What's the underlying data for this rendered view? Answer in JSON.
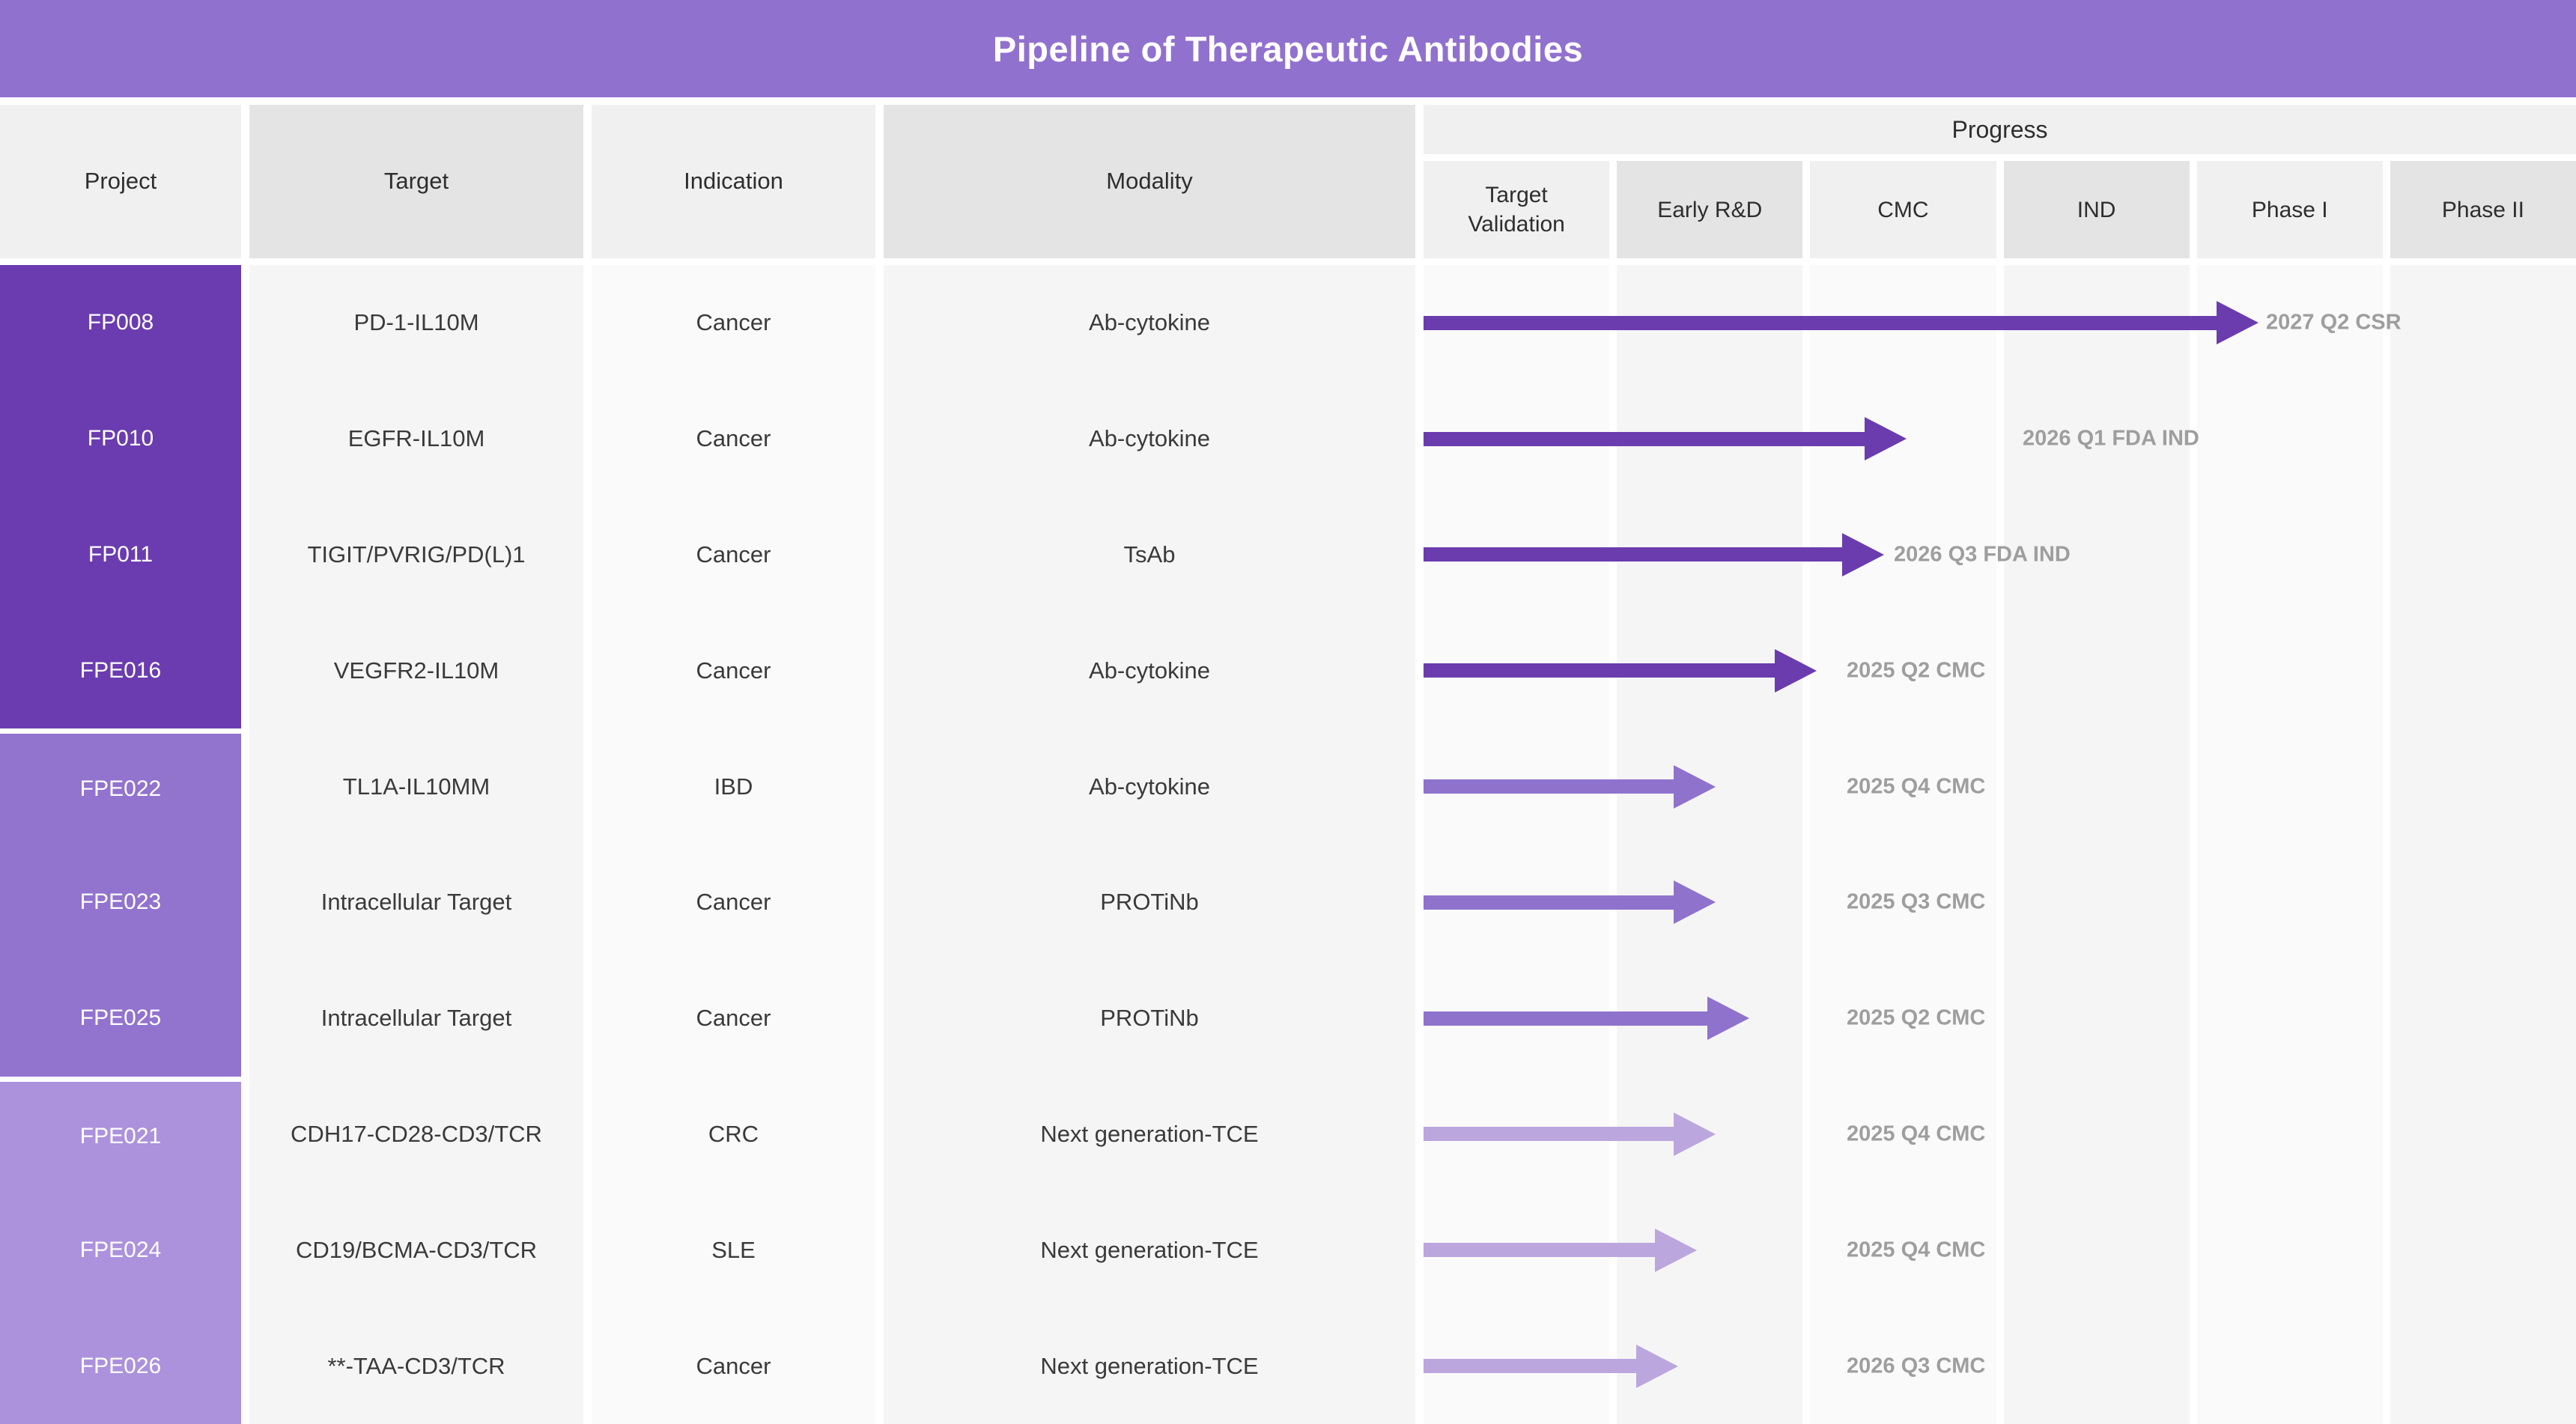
{
  "title": "Pipeline of Therapeutic Antibodies",
  "colors": {
    "header_bar": "#9171CE",
    "annotation": "#9E9E9E",
    "groups": {
      "1": "#6B3CAF",
      "2": "#9273CE",
      "3": "#AC92DC"
    },
    "arrows": {
      "1": "#6B3CAE",
      "2": "#8F72CC",
      "3": "#BCA6DE"
    },
    "header_cell_light": "#F0F0F0",
    "header_cell_dark": "#E4E4E4",
    "body_band_light": "#FAFAFA",
    "body_band_dark": "#F5F5F6"
  },
  "table": {
    "columns": {
      "project": "Project",
      "target": "Target",
      "indication": "Indication",
      "modality": "Modality",
      "progress": "Progress"
    },
    "progress_stages": [
      "Target Validation",
      "Early R&D",
      "CMC",
      "IND",
      "Phase I",
      "Phase II"
    ],
    "rows": [
      {
        "project": "FP008",
        "target": "PD-1-IL10M",
        "indication": "Cancer",
        "modality": "Ab-cytokine",
        "group": "1",
        "group_start": false,
        "arrow_len": 1115,
        "milestone": "2027 Q2 CSR",
        "label_x": 1125
      },
      {
        "project": "FP010",
        "target": "EGFR-IL10M",
        "indication": "Cancer",
        "modality": "Ab-cytokine",
        "group": "1",
        "group_start": false,
        "arrow_len": 645,
        "milestone": "2026 Q1 FDA IND",
        "label_x": 800
      },
      {
        "project": "FP011",
        "target": "TIGIT/PVRIG/PD(L)1",
        "indication": "Cancer",
        "modality": "TsAb",
        "group": "1",
        "group_start": false,
        "arrow_len": 615,
        "milestone": "2026 Q3 FDA IND",
        "label_x": 628
      },
      {
        "project": "FPE016",
        "target": "VEGFR2-IL10M",
        "indication": "Cancer",
        "modality": "Ab-cytokine",
        "group": "1",
        "group_start": false,
        "arrow_len": 525,
        "milestone": "2025 Q2 CMC",
        "label_x": 565
      },
      {
        "project": "FPE022",
        "target": "TL1A-IL10MM",
        "indication": "IBD",
        "modality": "Ab-cytokine",
        "group": "2",
        "group_start": true,
        "arrow_len": 390,
        "milestone": "2025 Q4 CMC",
        "label_x": 565
      },
      {
        "project": "FPE023",
        "target": "Intracellular Target",
        "indication": "Cancer",
        "modality": "PROTiNb",
        "group": "2",
        "group_start": false,
        "arrow_len": 390,
        "milestone": "2025 Q3 CMC",
        "label_x": 565
      },
      {
        "project": "FPE025",
        "target": "Intracellular Target",
        "indication": "Cancer",
        "modality": "PROTiNb",
        "group": "2",
        "group_start": false,
        "arrow_len": 435,
        "milestone": "2025 Q2 CMC",
        "label_x": 565
      },
      {
        "project": "FPE021",
        "target": "CDH17-CD28-CD3/TCR",
        "indication": "CRC",
        "modality": "Next generation-TCE",
        "group": "3",
        "group_start": true,
        "arrow_len": 390,
        "milestone": "2025 Q4 CMC",
        "label_x": 565
      },
      {
        "project": "FPE024",
        "target": "CD19/BCMA-CD3/TCR",
        "indication": "SLE",
        "modality": "Next generation-TCE",
        "group": "3",
        "group_start": false,
        "arrow_len": 365,
        "milestone": "2025 Q4 CMC",
        "label_x": 565
      },
      {
        "project": "FPE026",
        "target": "**-TAA-CD3/TCR",
        "indication": "Cancer",
        "modality": "Next generation-TCE",
        "group": "3",
        "group_start": false,
        "arrow_len": 340,
        "milestone": "2026 Q3 CMC",
        "label_x": 565
      }
    ]
  },
  "chart_data": {
    "type": "table",
    "title": "Pipeline of Therapeutic Antibodies",
    "stage_axis": [
      "Target Validation",
      "Early R&D",
      "CMC",
      "IND",
      "Phase I",
      "Phase II"
    ],
    "legend_position": "none",
    "rows": [
      {
        "project": "FP008",
        "target": "PD-1-IL10M",
        "indication": "Cancer",
        "modality": "Ab-cytokine",
        "arrow_end_stage": 4.35,
        "milestone": "2027 Q2 CSR"
      },
      {
        "project": "FP010",
        "target": "EGFR-IL10M",
        "indication": "Cancer",
        "modality": "Ab-cytokine",
        "arrow_end_stage": 2.5,
        "milestone": "2026 Q1 FDA IND"
      },
      {
        "project": "FP011",
        "target": "TIGIT/PVRIG/PD(L)1",
        "indication": "Cancer",
        "modality": "TsAb",
        "arrow_end_stage": 2.4,
        "milestone": "2026 Q3 FDA IND"
      },
      {
        "project": "FPE016",
        "target": "VEGFR2-IL10M",
        "indication": "Cancer",
        "modality": "Ab-cytokine",
        "arrow_end_stage": 2.05,
        "milestone": "2025 Q2 CMC"
      },
      {
        "project": "FPE022",
        "target": "TL1A-IL10MM",
        "indication": "IBD",
        "modality": "Ab-cytokine",
        "arrow_end_stage": 1.5,
        "milestone": "2025 Q4 CMC"
      },
      {
        "project": "FPE023",
        "target": "Intracellular Target",
        "indication": "Cancer",
        "modality": "PROTiNb",
        "arrow_end_stage": 1.5,
        "milestone": "2025 Q3 CMC"
      },
      {
        "project": "FPE025",
        "target": "Intracellular Target",
        "indication": "Cancer",
        "modality": "PROTiNb",
        "arrow_end_stage": 1.7,
        "milestone": "2025 Q2 CMC"
      },
      {
        "project": "FPE021",
        "target": "CDH17-CD28-CD3/TCR",
        "indication": "CRC",
        "modality": "Next generation-TCE",
        "arrow_end_stage": 1.5,
        "milestone": "2025 Q4 CMC"
      },
      {
        "project": "FPE024",
        "target": "CD19/BCMA-CD3/TCR",
        "indication": "SLE",
        "modality": "Next generation-TCE",
        "arrow_end_stage": 1.4,
        "milestone": "2025 Q4 CMC"
      },
      {
        "project": "FPE026",
        "target": "**-TAA-CD3/TCR",
        "indication": "Cancer",
        "modality": "Next generation-TCE",
        "arrow_end_stage": 1.3,
        "milestone": "2026 Q3 CMC"
      }
    ]
  }
}
